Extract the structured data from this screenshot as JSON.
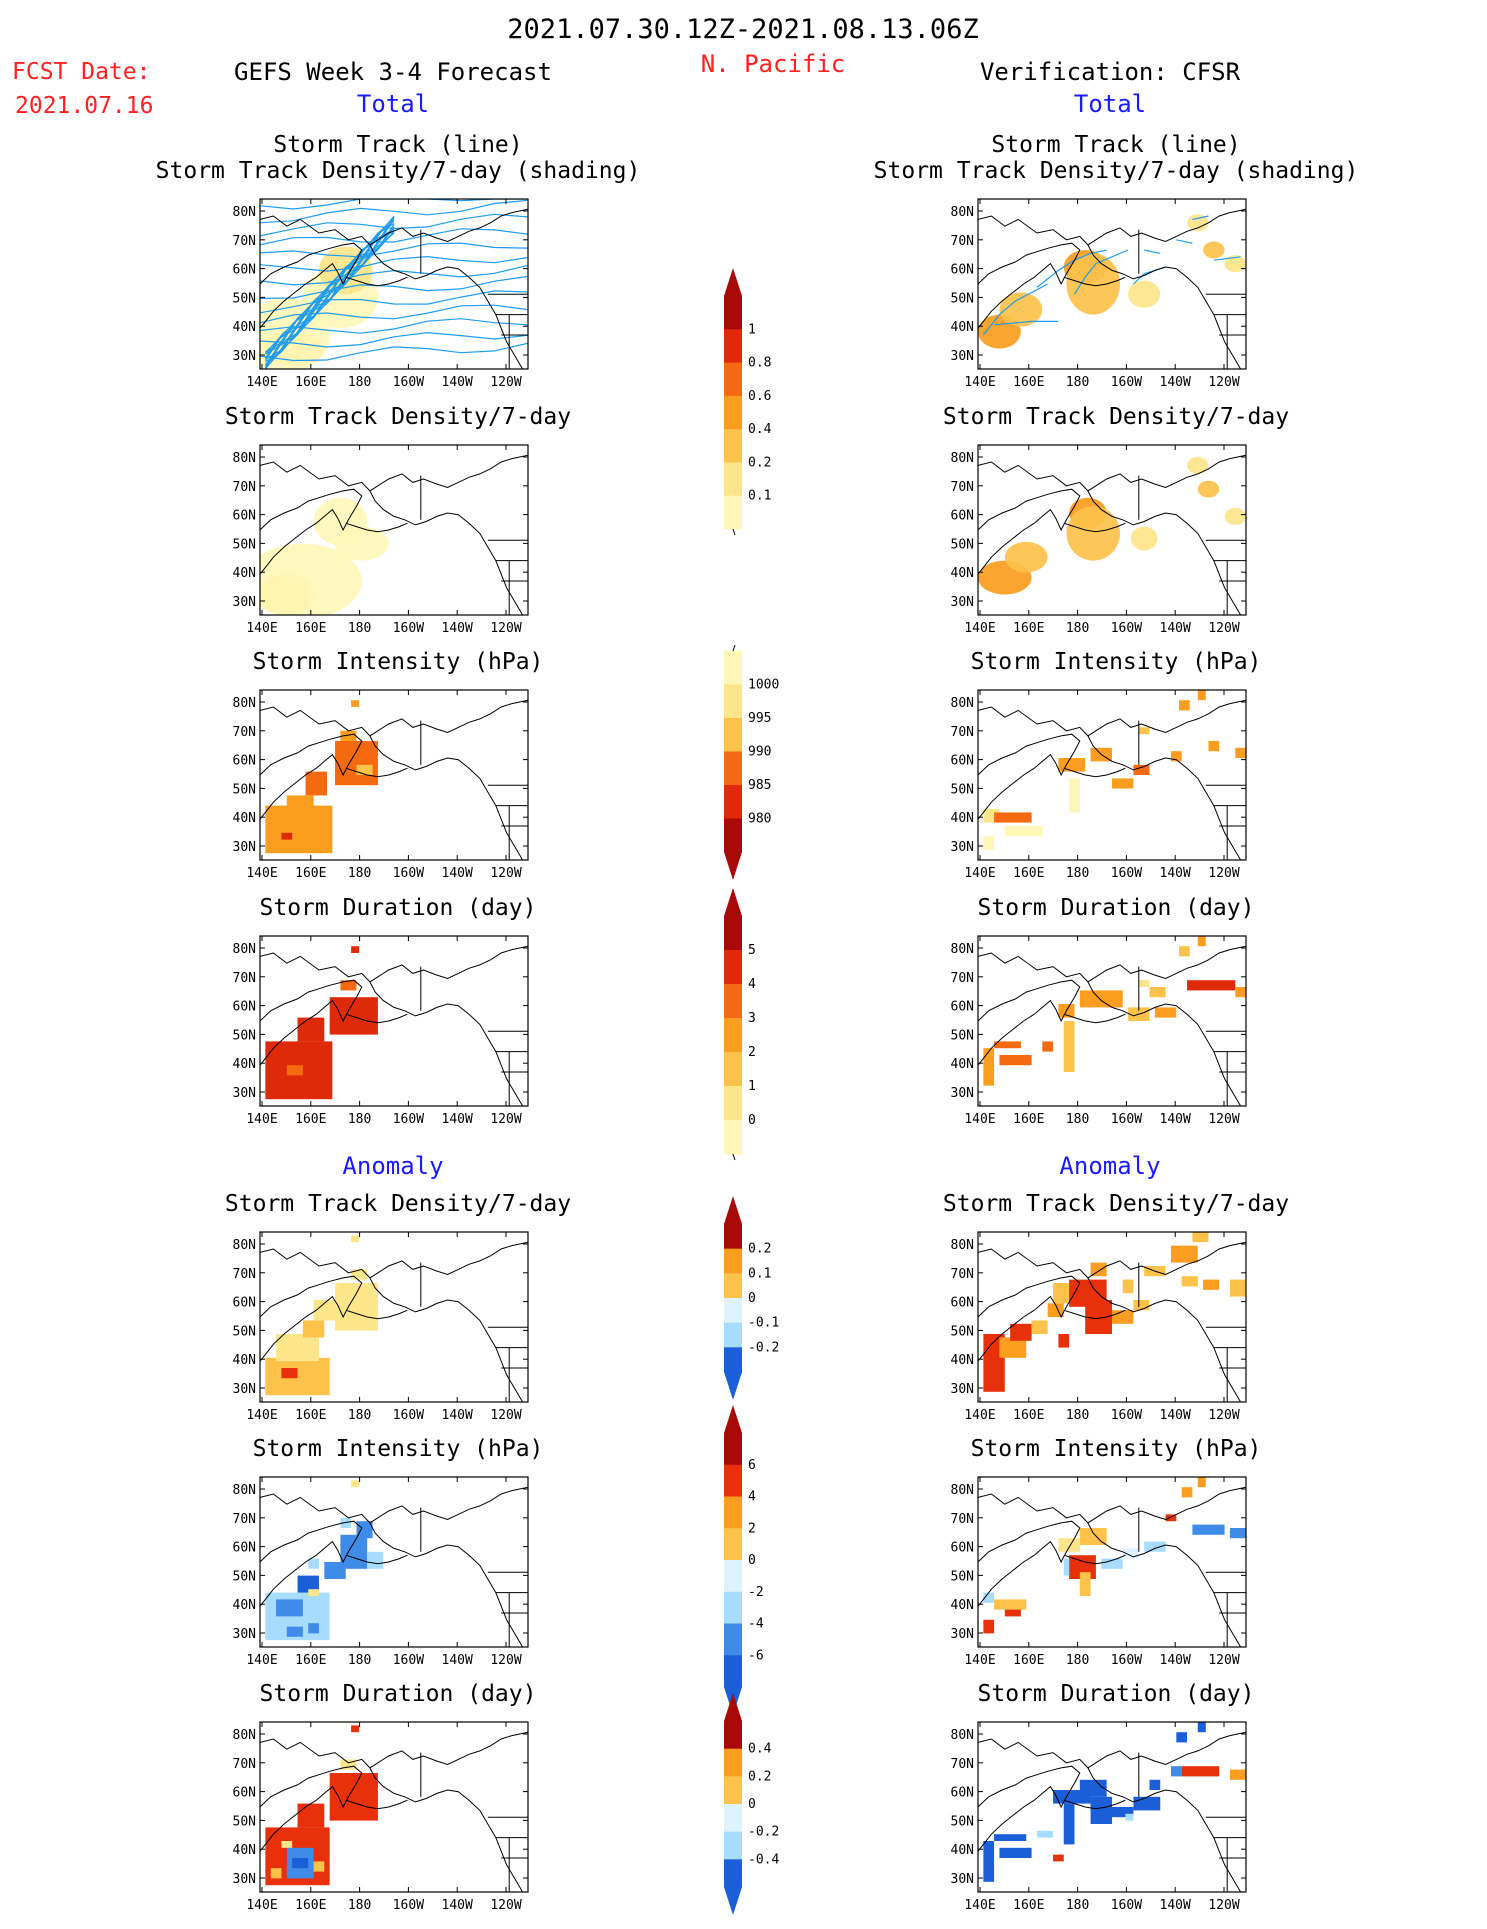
{
  "header": {
    "date_range": "2021.07.30.12Z-2021.08.13.06Z",
    "region": "N. Pacific",
    "fcst_date_label": "FCST Date:",
    "fcst_date_value": "2021.07.16",
    "left_title": "GEFS Week 3-4 Forecast",
    "right_title": "Verification: CFSR",
    "total_left": "Total",
    "total_right": "Total",
    "anomaly_left": "Anomaly",
    "anomaly_right": "Anomaly"
  },
  "colors": {
    "black": "#000000",
    "red_text": "#ff2020",
    "blue_text": "#1a1aff",
    "track_line": "#1e9cf0",
    "positive_scale": [
      "#fff7b8",
      "#fde58a",
      "#fcc24a",
      "#fb9d1f",
      "#f56a10",
      "#df2a0a",
      "#a80a0a"
    ],
    "diverging_scale": [
      "#1a5fd8",
      "#3f8ce8",
      "#a8dcff",
      "#dff3ff",
      "#fde58a",
      "#fcc24a",
      "#fb9d1f",
      "#e8300a",
      "#a80a0a"
    ]
  },
  "chart_data": [
    {
      "id": "fcst-total-track",
      "type": "heatmap",
      "title": "Storm Track (line)",
      "subtitle": "Storm Track Density/7-day (shading)",
      "xticks": [
        "140E",
        "160E",
        "180",
        "160W",
        "140W",
        "120W"
      ],
      "yticks": [
        "80N",
        "70N",
        "60N",
        "50N",
        "40N",
        "30N"
      ],
      "lines": true
    },
    {
      "id": "cfsr-total-track",
      "type": "heatmap",
      "title": "Storm Track (line)",
      "subtitle": "Storm Track Density/7-day (shading)",
      "xticks": [
        "140E",
        "160E",
        "180",
        "160W",
        "140W",
        "120W"
      ],
      "yticks": [
        "80N",
        "70N",
        "60N",
        "50N",
        "40N",
        "30N"
      ],
      "lines": true
    },
    {
      "id": "fcst-total-density",
      "type": "heatmap",
      "title": "Storm Track Density/7-day",
      "xticks": [
        "140E",
        "160E",
        "180",
        "160W",
        "140W",
        "120W"
      ],
      "yticks": [
        "80N",
        "70N",
        "60N",
        "50N",
        "40N",
        "30N"
      ]
    },
    {
      "id": "cfsr-total-density",
      "type": "heatmap",
      "title": "Storm Track Density/7-day",
      "xticks": [
        "140E",
        "160E",
        "180",
        "160W",
        "140W",
        "120W"
      ],
      "yticks": [
        "80N",
        "70N",
        "60N",
        "50N",
        "40N",
        "30N"
      ]
    },
    {
      "id": "fcst-total-intensity",
      "type": "heatmap",
      "title": "Storm Intensity (hPa)",
      "xticks": [
        "140E",
        "160E",
        "180",
        "160W",
        "140W",
        "120W"
      ],
      "yticks": [
        "80N",
        "70N",
        "60N",
        "50N",
        "40N",
        "30N"
      ]
    },
    {
      "id": "cfsr-total-intensity",
      "type": "heatmap",
      "title": "Storm Intensity (hPa)",
      "xticks": [
        "140E",
        "160E",
        "180",
        "160W",
        "140W",
        "120W"
      ],
      "yticks": [
        "80N",
        "70N",
        "60N",
        "50N",
        "40N",
        "30N"
      ]
    },
    {
      "id": "fcst-total-duration",
      "type": "heatmap",
      "title": "Storm Duration (day)",
      "xticks": [
        "140E",
        "160E",
        "180",
        "160W",
        "140W",
        "120W"
      ],
      "yticks": [
        "80N",
        "70N",
        "60N",
        "50N",
        "40N",
        "30N"
      ]
    },
    {
      "id": "cfsr-total-duration",
      "type": "heatmap",
      "title": "Storm Duration (day)",
      "xticks": [
        "140E",
        "160E",
        "180",
        "160W",
        "140W",
        "120W"
      ],
      "yticks": [
        "80N",
        "70N",
        "60N",
        "50N",
        "40N",
        "30N"
      ]
    },
    {
      "id": "fcst-anom-density",
      "type": "heatmap",
      "title": "Storm Track Density/7-day",
      "xticks": [
        "140E",
        "160E",
        "180",
        "160W",
        "140W",
        "120W"
      ],
      "yticks": [
        "80N",
        "70N",
        "60N",
        "50N",
        "40N",
        "30N"
      ]
    },
    {
      "id": "cfsr-anom-density",
      "type": "heatmap",
      "title": "Storm Track Density/7-day",
      "xticks": [
        "140E",
        "160E",
        "180",
        "160W",
        "140W",
        "120W"
      ],
      "yticks": [
        "80N",
        "70N",
        "60N",
        "50N",
        "40N",
        "30N"
      ]
    },
    {
      "id": "fcst-anom-intensity",
      "type": "heatmap",
      "title": "Storm Intensity (hPa)",
      "xticks": [
        "140E",
        "160E",
        "180",
        "160W",
        "140W",
        "120W"
      ],
      "yticks": [
        "80N",
        "70N",
        "60N",
        "50N",
        "40N",
        "30N"
      ]
    },
    {
      "id": "cfsr-anom-intensity",
      "type": "heatmap",
      "title": "Storm Intensity (hPa)",
      "xticks": [
        "140E",
        "160E",
        "180",
        "160W",
        "140W",
        "120W"
      ],
      "yticks": [
        "80N",
        "70N",
        "60N",
        "50N",
        "40N",
        "30N"
      ]
    },
    {
      "id": "fcst-anom-duration",
      "type": "heatmap",
      "title": "Storm Duration (day)",
      "xticks": [
        "140E",
        "160E",
        "180",
        "160W",
        "140W",
        "120W"
      ],
      "yticks": [
        "80N",
        "70N",
        "60N",
        "50N",
        "40N",
        "30N"
      ]
    },
    {
      "id": "cfsr-anom-duration",
      "type": "heatmap",
      "title": "Storm Duration (day)",
      "xticks": [
        "140E",
        "160E",
        "180",
        "160W",
        "140W",
        "120W"
      ],
      "yticks": [
        "80N",
        "70N",
        "60N",
        "50N",
        "40N",
        "30N"
      ]
    }
  ],
  "colorbars": [
    {
      "id": "cb-density",
      "labels": [
        "1",
        "0.8",
        "0.6",
        "0.4",
        "0.2",
        "0.1"
      ],
      "scale": "positive_scale",
      "reversed": false
    },
    {
      "id": "cb-intensity",
      "labels": [
        "1000",
        "995",
        "990",
        "985",
        "980"
      ],
      "scale": "positive_scale",
      "reversed": true
    },
    {
      "id": "cb-duration",
      "labels": [
        "5",
        "4",
        "3",
        "2",
        "1",
        "0"
      ],
      "scale": "positive_scale",
      "reversed": false
    },
    {
      "id": "cb-anom-density",
      "labels": [
        "0.2",
        "0.1",
        "0",
        "-0.1",
        "-0.2"
      ],
      "scale": "diverging_scale",
      "reversed": false
    },
    {
      "id": "cb-anom-intensity",
      "labels": [
        "6",
        "4",
        "2",
        "0",
        "-2",
        "-4",
        "-6"
      ],
      "scale": "diverging_scale",
      "reversed": false
    },
    {
      "id": "cb-anom-duration",
      "labels": [
        "0.4",
        "0.2",
        "0",
        "-0.2",
        "-0.4"
      ],
      "scale": "diverging_scale",
      "reversed": false
    }
  ]
}
